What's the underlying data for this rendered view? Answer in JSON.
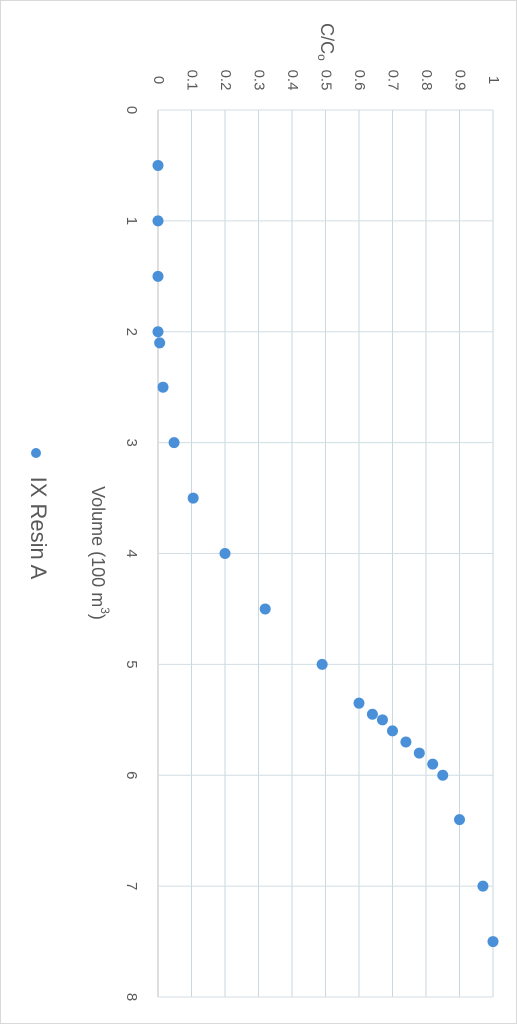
{
  "chart_data": {
    "type": "scatter",
    "orientation": "rotated-90-clockwise",
    "title": "",
    "xlabel_parts": {
      "main": "Volume (100 m",
      "sup": "3",
      "tail": ")"
    },
    "ylabel_parts": {
      "main": "C/C",
      "sub": "o"
    },
    "xlim": [
      0,
      8
    ],
    "ylim": [
      0,
      1
    ],
    "x_ticks": [
      "0",
      "1",
      "2",
      "3",
      "4",
      "5",
      "6",
      "7",
      "8"
    ],
    "y_ticks": [
      "0",
      "0.1",
      "0.2",
      "0.3",
      "0.4",
      "0.5",
      "0.6",
      "0.7",
      "0.8",
      "0.9",
      "1"
    ],
    "grid": true,
    "legend_position": "bottom",
    "marker_color": "#4a90d9",
    "series": [
      {
        "name": "IX Resin A",
        "points": [
          [
            0.5,
            0.0
          ],
          [
            1.0,
            0.0
          ],
          [
            1.5,
            0.0
          ],
          [
            2.0,
            0.0
          ],
          [
            2.1,
            0.005
          ],
          [
            2.5,
            0.015
          ],
          [
            3.0,
            0.048
          ],
          [
            3.5,
            0.105
          ],
          [
            4.0,
            0.2
          ],
          [
            4.5,
            0.32
          ],
          [
            5.0,
            0.49
          ],
          [
            5.35,
            0.6
          ],
          [
            5.45,
            0.64
          ],
          [
            5.5,
            0.67
          ],
          [
            5.6,
            0.7
          ],
          [
            5.7,
            0.74
          ],
          [
            5.8,
            0.78
          ],
          [
            5.9,
            0.82
          ],
          [
            6.0,
            0.85
          ],
          [
            6.4,
            0.9
          ],
          [
            7.0,
            0.97
          ],
          [
            7.5,
            1.0
          ]
        ]
      }
    ]
  }
}
